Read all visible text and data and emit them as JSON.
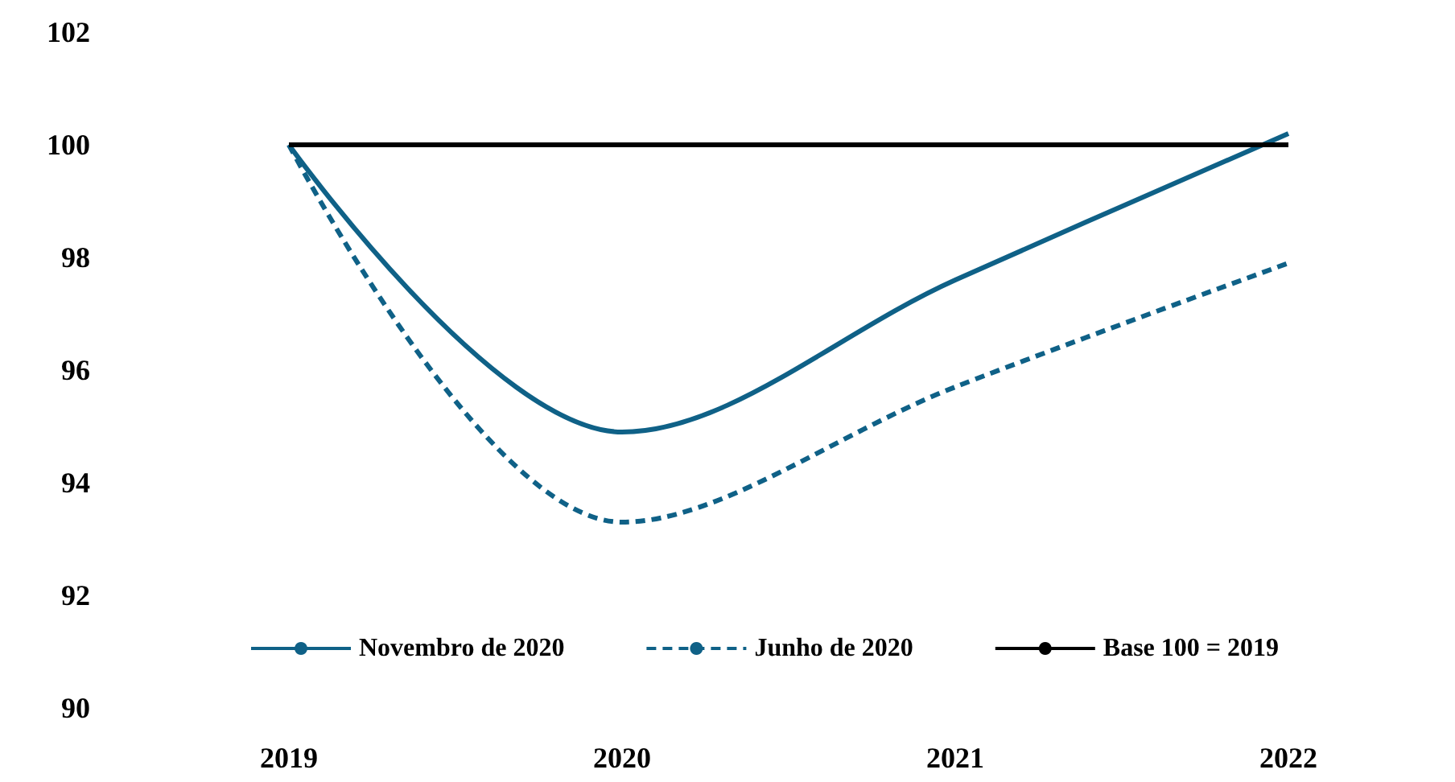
{
  "chart_data": {
    "type": "line",
    "categories": [
      "2019",
      "2020",
      "2021",
      "2022"
    ],
    "series": [
      {
        "name": "Novembro de 2020",
        "color": "#0f6187",
        "line_style": "solid",
        "values": [
          100,
          94.9,
          97.6,
          100.2
        ]
      },
      {
        "name": "Junho de 2020",
        "color": "#0f6187",
        "line_style": "dashed",
        "values": [
          100,
          93.3,
          95.7,
          97.9
        ]
      },
      {
        "name": "Base 100 = 2019",
        "color": "#000000",
        "line_style": "solid",
        "values": [
          100,
          100,
          100,
          100
        ]
      }
    ],
    "ylim": [
      90,
      102
    ],
    "yticks": [
      90,
      92,
      94,
      96,
      98,
      100,
      102
    ],
    "grid": false,
    "legend": "bottom",
    "marker": "none"
  }
}
